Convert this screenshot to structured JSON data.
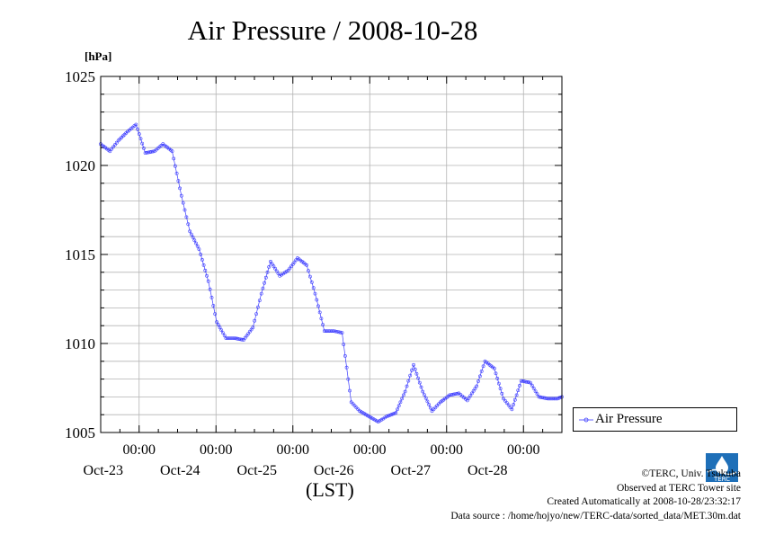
{
  "header": {
    "title": "Air Pressure / 2008-10-28",
    "unit": "[hPa]",
    "xaxis_label": "(LST)"
  },
  "legend": {
    "label": "Air Pressure"
  },
  "credits": {
    "copyright": "©TERC, Univ. Tsukuba",
    "observed": "Observed at TERC Tower site",
    "created": "Created Automatically at 2008-10-28/23:32:17",
    "source": "Data source : /home/hojyo/new/TERC-data/sorted_data/MET.30m.dat",
    "logo_text": "TERC"
  },
  "colors": {
    "series": "#3c3cff",
    "grid": "#b4b4b4",
    "axis": "#000000"
  },
  "chart_data": {
    "type": "line",
    "title": "Air Pressure / 2008-10-28",
    "ylabel": "[hPa]",
    "xlabel": "(LST)",
    "ylim": [
      1005,
      1025
    ],
    "xlim_days": [
      -0.5,
      5.5
    ],
    "x_unit": "days since 2008-10-23 00:00 LST",
    "yticks": [
      1005,
      1010,
      1015,
      1020,
      1025
    ],
    "xticks": [
      {
        "x": 0,
        "time": "00:00",
        "date": "Oct-23"
      },
      {
        "x": 1,
        "time": "00:00",
        "date": "Oct-24"
      },
      {
        "x": 2,
        "time": "00:00",
        "date": "Oct-25"
      },
      {
        "x": 3,
        "time": "00:00",
        "date": "Oct-26"
      },
      {
        "x": 4,
        "time": "00:00",
        "date": "Oct-27"
      },
      {
        "x": 5,
        "time": "00:00",
        "date": "Oct-28"
      }
    ],
    "grid": true,
    "legend_position": "right",
    "series": [
      {
        "name": "Air Pressure",
        "marker": "circle",
        "x": [
          -0.5,
          -0.38,
          -0.27,
          -0.15,
          -0.04,
          0.08,
          0.2,
          0.31,
          0.43,
          0.55,
          0.66,
          0.78,
          0.9,
          1.01,
          1.13,
          1.24,
          1.36,
          1.48,
          1.59,
          1.71,
          1.83,
          1.94,
          2.06,
          2.18,
          2.29,
          2.41,
          2.53,
          2.64,
          2.76,
          2.87,
          2.99,
          3.11,
          3.22,
          3.34,
          3.46,
          3.57,
          3.69,
          3.81,
          3.92,
          4.04,
          4.16,
          4.27,
          4.39,
          4.5,
          4.62,
          4.74,
          4.85,
          4.97,
          5.09,
          5.2,
          5.32,
          5.44,
          5.5
        ],
        "values": [
          1021.2,
          1020.8,
          1021.4,
          1021.9,
          1022.3,
          1020.7,
          1020.8,
          1021.2,
          1020.8,
          1018.3,
          1016.3,
          1015.3,
          1013.5,
          1011.2,
          1010.3,
          1010.3,
          1010.2,
          1010.9,
          1012.8,
          1014.6,
          1013.8,
          1014.1,
          1014.8,
          1014.4,
          1012.8,
          1010.7,
          1010.7,
          1010.6,
          1006.7,
          1006.2,
          1005.9,
          1005.6,
          1005.9,
          1006.1,
          1007.3,
          1008.8,
          1007.3,
          1006.2,
          1006.7,
          1007.1,
          1007.2,
          1006.8,
          1007.6,
          1009.0,
          1008.6,
          1006.9,
          1006.3,
          1007.9,
          1007.8,
          1007.0,
          1006.9,
          1006.9,
          1007.0
        ]
      }
    ]
  }
}
